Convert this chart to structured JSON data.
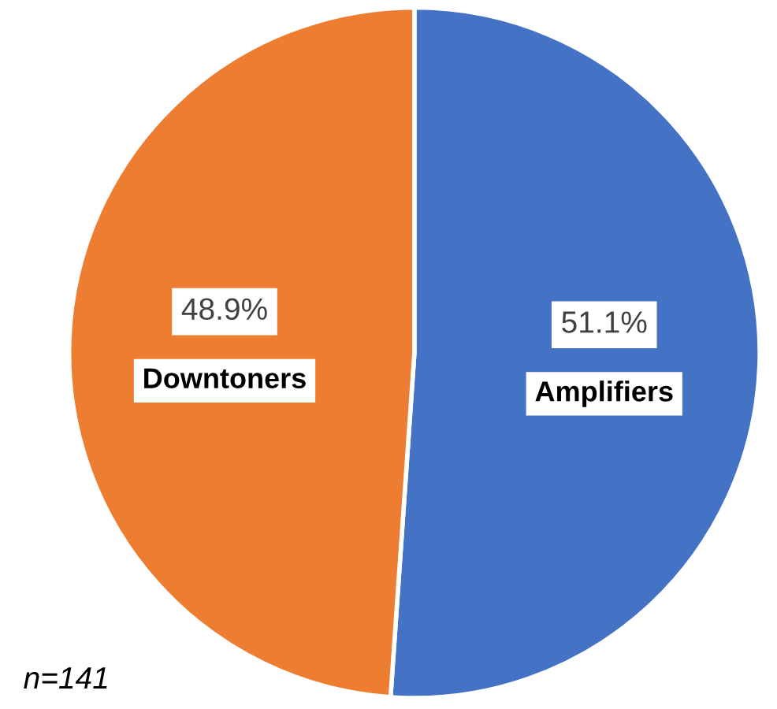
{
  "chart_data": {
    "type": "pie",
    "categories": [
      "Amplifiers",
      "Downtoners"
    ],
    "values": [
      51.1,
      48.9
    ],
    "colors": [
      "#4472c4",
      "#ed7d31"
    ],
    "value_labels": [
      "51.1%",
      "48.9%"
    ],
    "annotations": [
      "n=141"
    ]
  }
}
